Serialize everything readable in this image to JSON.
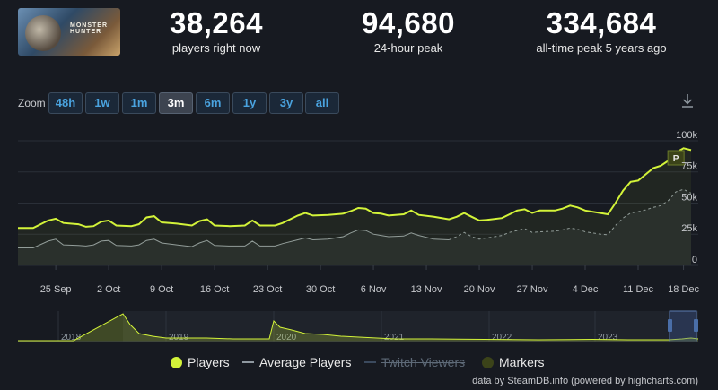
{
  "stats": [
    {
      "value": "38,264",
      "label": "players right now"
    },
    {
      "value": "94,680",
      "label": "24-hour peak"
    },
    {
      "value": "334,684",
      "label": "all-time peak 5 years ago"
    }
  ],
  "game_logo_text": "MONSTER HUNTER",
  "zoom": {
    "label": "Zoom",
    "options": [
      "48h",
      "1w",
      "1m",
      "3m",
      "6m",
      "1y",
      "3y",
      "all"
    ],
    "active": "3m"
  },
  "colors": {
    "players": "#d3f339",
    "average": "#8f98a0",
    "twitch": "#3b4a5e",
    "markers": "#3b4319",
    "background": "#171a21"
  },
  "legend": {
    "players": "Players",
    "average": "Average Players",
    "twitch": "Twitch Viewers",
    "markers": "Markers"
  },
  "marker_label": "P",
  "credits": "data by SteamDB.info (powered by highcharts.com)",
  "chart_data": [
    {
      "type": "line",
      "yaxis_position": "right",
      "ylim": [
        0,
        105000
      ],
      "yticks": [
        0,
        25000,
        50000,
        75000,
        100000
      ],
      "ytick_labels": [
        "0",
        "25k",
        "50k",
        "75k",
        "100k"
      ],
      "xlim": [
        0,
        88
      ],
      "xticks": [
        5,
        12,
        19,
        26,
        33,
        40,
        47,
        54,
        61,
        68,
        75,
        82,
        88
      ],
      "xtick_labels": [
        "25 Sep",
        "2 Oct",
        "9 Oct",
        "16 Oct",
        "23 Oct",
        "30 Oct",
        "6 Nov",
        "13 Nov",
        "20 Nov",
        "27 Nov",
        "4 Dec",
        "11 Dec",
        "18 Dec"
      ],
      "grid": true,
      "series": [
        {
          "name": "Players",
          "points": [
            [
              0,
              30000
            ],
            [
              2,
              30000
            ],
            [
              4,
              36000
            ],
            [
              5,
              37500
            ],
            [
              6,
              34000
            ],
            [
              8,
              33000
            ],
            [
              9,
              31000
            ],
            [
              10,
              31500
            ],
            [
              11,
              35000
            ],
            [
              12,
              36000
            ],
            [
              13,
              32000
            ],
            [
              15,
              31500
            ],
            [
              16,
              33000
            ],
            [
              17,
              38500
            ],
            [
              18,
              39500
            ],
            [
              19,
              34500
            ],
            [
              21,
              33500
            ],
            [
              23,
              32000
            ],
            [
              24,
              35500
            ],
            [
              25,
              37000
            ],
            [
              26,
              32000
            ],
            [
              28,
              31500
            ],
            [
              30,
              32000
            ],
            [
              31,
              36000
            ],
            [
              32,
              32000
            ],
            [
              34,
              32000
            ],
            [
              35,
              34000
            ],
            [
              37,
              40000
            ],
            [
              38,
              42000
            ],
            [
              39,
              40000
            ],
            [
              41,
              40500
            ],
            [
              43,
              41500
            ],
            [
              44,
              43500
            ],
            [
              45,
              46000
            ],
            [
              46,
              45500
            ],
            [
              47,
              42000
            ],
            [
              48,
              41500
            ],
            [
              49,
              40000
            ],
            [
              51,
              41000
            ],
            [
              52,
              44000
            ],
            [
              53,
              40500
            ],
            [
              55,
              39000
            ],
            [
              57,
              37000
            ],
            [
              58,
              39000
            ],
            [
              59,
              42000
            ],
            [
              60,
              39000
            ],
            [
              61,
              36000
            ],
            [
              62,
              36500
            ],
            [
              64,
              38000
            ],
            [
              65,
              41000
            ],
            [
              66,
              44000
            ],
            [
              67,
              45000
            ],
            [
              68,
              42000
            ],
            [
              69,
              44000
            ],
            [
              71,
              44000
            ],
            [
              72,
              45500
            ],
            [
              73,
              48000
            ],
            [
              74,
              46500
            ],
            [
              75,
              44000
            ],
            [
              77,
              42000
            ],
            [
              78,
              41000
            ],
            [
              79,
              50000
            ],
            [
              80,
              60000
            ],
            [
              81,
              67000
            ],
            [
              82,
              68000
            ],
            [
              83,
              73000
            ],
            [
              84,
              78000
            ],
            [
              85,
              80000
            ],
            [
              86,
              84000
            ],
            [
              87,
              90500
            ],
            [
              88,
              94000
            ],
            [
              89,
              92500
            ]
          ]
        },
        {
          "name": "Average Players",
          "points": [
            [
              0,
              14000
            ],
            [
              2,
              14000
            ],
            [
              4,
              19500
            ],
            [
              5,
              21000
            ],
            [
              6,
              16500
            ],
            [
              8,
              16000
            ],
            [
              9,
              15500
            ],
            [
              10,
              16500
            ],
            [
              11,
              19500
            ],
            [
              12,
              20000
            ],
            [
              13,
              16000
            ],
            [
              15,
              15500
            ],
            [
              16,
              16500
            ],
            [
              17,
              20000
            ],
            [
              18,
              21000
            ],
            [
              19,
              18000
            ],
            [
              21,
              16500
            ],
            [
              23,
              15000
            ],
            [
              24,
              18000
            ],
            [
              25,
              20000
            ],
            [
              26,
              16000
            ],
            [
              28,
              15500
            ],
            [
              30,
              15500
            ],
            [
              31,
              19500
            ],
            [
              32,
              15500
            ],
            [
              34,
              15500
            ],
            [
              35,
              17500
            ],
            [
              37,
              20500
            ],
            [
              38,
              22000
            ],
            [
              39,
              20500
            ],
            [
              41,
              21000
            ],
            [
              43,
              23000
            ],
            [
              44,
              26000
            ],
            [
              45,
              28500
            ],
            [
              46,
              28000
            ],
            [
              47,
              25000
            ],
            [
              48,
              24000
            ],
            [
              49,
              23000
            ],
            [
              51,
              23500
            ],
            [
              52,
              26000
            ],
            [
              53,
              24000
            ],
            [
              55,
              21000
            ],
            [
              57,
              20500
            ],
            [
              58,
              23000
            ],
            [
              59,
              26500
            ],
            [
              60,
              23000
            ],
            [
              61,
              21000
            ],
            [
              62,
              22000
            ],
            [
              64,
              24000
            ],
            [
              65,
              26500
            ],
            [
              66,
              28000
            ],
            [
              67,
              29500
            ],
            [
              68,
              26500
            ],
            [
              69,
              27000
            ],
            [
              71,
              27500
            ],
            [
              72,
              28500
            ],
            [
              73,
              30000
            ],
            [
              74,
              29000
            ],
            [
              75,
              27000
            ],
            [
              77,
              25000
            ],
            [
              78,
              24500
            ],
            [
              79,
              32000
            ],
            [
              80,
              38000
            ],
            [
              81,
              42000
            ],
            [
              82,
              43000
            ],
            [
              83,
              44500
            ],
            [
              84,
              46500
            ],
            [
              85,
              48000
            ],
            [
              86,
              52000
            ],
            [
              87,
              59000
            ],
            [
              88,
              61000
            ],
            [
              89,
              58000
            ]
          ]
        }
      ],
      "markers": [
        {
          "label": "P",
          "x": 87
        }
      ]
    },
    {
      "type": "area",
      "role": "navigator",
      "xtick_labels": [
        "2018",
        "2019",
        "2020",
        "2021",
        "2022",
        "2023"
      ]
    }
  ]
}
